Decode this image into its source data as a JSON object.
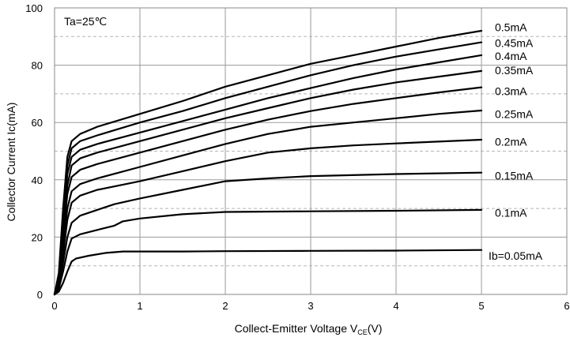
{
  "chart_data": {
    "type": "line",
    "title": "",
    "annotation": "Ta=25℃",
    "ylabel": "Collector  Current   Ic(mA)",
    "xlabel": {
      "main": "Collect-Emitter Voltage   V",
      "subscript": "CE",
      "suffix": "(V)"
    },
    "xlim": [
      0,
      6
    ],
    "ylim": [
      0,
      100
    ],
    "x_ticks": [
      "0",
      "1",
      "2",
      "3",
      "4",
      "5",
      "6"
    ],
    "y_ticks": [
      "0",
      "20",
      "40",
      "60",
      "80",
      "100"
    ],
    "grid": true,
    "series": [
      {
        "name": "Ib=0.05mA",
        "points": [
          [
            0,
            0
          ],
          [
            0.05,
            1
          ],
          [
            0.1,
            4
          ],
          [
            0.15,
            8
          ],
          [
            0.2,
            11.5
          ],
          [
            0.25,
            12.5
          ],
          [
            0.4,
            13.5
          ],
          [
            0.6,
            14.5
          ],
          [
            0.8,
            15
          ],
          [
            1,
            15
          ],
          [
            1.5,
            15
          ],
          [
            2,
            15.1
          ],
          [
            3,
            15.2
          ],
          [
            4,
            15.3
          ],
          [
            5,
            15.5
          ]
        ]
      },
      {
        "name": "0.1mA",
        "points": [
          [
            0,
            0
          ],
          [
            0.05,
            2
          ],
          [
            0.1,
            8
          ],
          [
            0.15,
            15
          ],
          [
            0.2,
            19.5
          ],
          [
            0.3,
            21
          ],
          [
            0.5,
            22.5
          ],
          [
            0.7,
            24
          ],
          [
            0.8,
            25.5
          ],
          [
            1,
            26.5
          ],
          [
            1.5,
            28
          ],
          [
            2,
            28.8
          ],
          [
            3,
            29
          ],
          [
            4,
            29.2
          ],
          [
            5,
            29.5
          ]
        ]
      },
      {
        "name": "0.15mA",
        "points": [
          [
            0,
            0
          ],
          [
            0.05,
            3
          ],
          [
            0.1,
            11
          ],
          [
            0.15,
            20
          ],
          [
            0.2,
            25
          ],
          [
            0.3,
            27.5
          ],
          [
            0.5,
            29.5
          ],
          [
            0.7,
            31.5
          ],
          [
            1,
            33.5
          ],
          [
            1.5,
            36.5
          ],
          [
            2,
            39.5
          ],
          [
            2.5,
            40.5
          ],
          [
            3,
            41.3
          ],
          [
            4,
            42
          ],
          [
            5,
            42.5
          ]
        ]
      },
      {
        "name": "0.2mA",
        "points": [
          [
            0,
            0
          ],
          [
            0.05,
            4
          ],
          [
            0.1,
            14
          ],
          [
            0.15,
            26
          ],
          [
            0.2,
            32
          ],
          [
            0.3,
            34.5
          ],
          [
            0.5,
            36.5
          ],
          [
            1,
            39.5
          ],
          [
            1.5,
            43
          ],
          [
            2,
            46.5
          ],
          [
            2.5,
            49.5
          ],
          [
            3,
            51
          ],
          [
            3.5,
            52
          ],
          [
            4,
            52.7
          ],
          [
            5,
            54
          ]
        ]
      },
      {
        "name": "0.25mA",
        "points": [
          [
            0,
            0
          ],
          [
            0.05,
            5
          ],
          [
            0.1,
            17
          ],
          [
            0.15,
            30
          ],
          [
            0.2,
            36
          ],
          [
            0.3,
            38.5
          ],
          [
            0.5,
            40.5
          ],
          [
            1,
            44.5
          ],
          [
            1.5,
            48.5
          ],
          [
            2,
            52.5
          ],
          [
            2.5,
            56
          ],
          [
            3,
            58.5
          ],
          [
            3.5,
            60
          ],
          [
            4,
            61.5
          ],
          [
            4.5,
            63
          ],
          [
            5,
            64.2
          ]
        ]
      },
      {
        "name": "0.3mA",
        "points": [
          [
            0,
            0
          ],
          [
            0.05,
            5.5
          ],
          [
            0.1,
            20
          ],
          [
            0.15,
            35
          ],
          [
            0.2,
            41
          ],
          [
            0.3,
            43.5
          ],
          [
            0.5,
            45.5
          ],
          [
            1,
            49.5
          ],
          [
            1.5,
            53.5
          ],
          [
            2,
            57.5
          ],
          [
            2.5,
            61
          ],
          [
            3,
            64
          ],
          [
            3.5,
            66.5
          ],
          [
            4,
            68.5
          ],
          [
            4.5,
            70.5
          ],
          [
            5,
            72.3
          ]
        ]
      },
      {
        "name": "0.35mA",
        "points": [
          [
            0,
            0
          ],
          [
            0.05,
            6
          ],
          [
            0.1,
            22
          ],
          [
            0.15,
            38
          ],
          [
            0.2,
            45
          ],
          [
            0.3,
            47.5
          ],
          [
            0.5,
            49.5
          ],
          [
            1,
            53.5
          ],
          [
            1.5,
            57.5
          ],
          [
            2,
            61.5
          ],
          [
            2.5,
            65
          ],
          [
            3,
            68.5
          ],
          [
            3.5,
            71.5
          ],
          [
            4,
            74
          ],
          [
            4.5,
            76
          ],
          [
            5,
            78
          ]
        ]
      },
      {
        "name": "0.4mA",
        "points": [
          [
            0,
            0
          ],
          [
            0.05,
            6.5
          ],
          [
            0.1,
            25
          ],
          [
            0.15,
            42
          ],
          [
            0.2,
            48
          ],
          [
            0.3,
            50.5
          ],
          [
            0.5,
            52.5
          ],
          [
            1,
            56.5
          ],
          [
            1.5,
            60.5
          ],
          [
            2,
            64.5
          ],
          [
            2.5,
            68.5
          ],
          [
            3,
            72
          ],
          [
            3.5,
            75.5
          ],
          [
            4,
            78.5
          ],
          [
            4.5,
            81
          ],
          [
            5,
            83.5
          ]
        ]
      },
      {
        "name": "0.45mA",
        "points": [
          [
            0,
            0
          ],
          [
            0.05,
            7
          ],
          [
            0.1,
            27
          ],
          [
            0.15,
            45
          ],
          [
            0.2,
            51
          ],
          [
            0.3,
            53.5
          ],
          [
            0.5,
            55.5
          ],
          [
            1,
            60
          ],
          [
            1.5,
            64
          ],
          [
            2,
            68.5
          ],
          [
            2.5,
            72.5
          ],
          [
            3,
            76.5
          ],
          [
            3.5,
            80
          ],
          [
            4,
            83
          ],
          [
            4.5,
            85.5
          ],
          [
            5,
            88
          ]
        ]
      },
      {
        "name": "0.5mA",
        "points": [
          [
            0,
            0
          ],
          [
            0.05,
            7.5
          ],
          [
            0.1,
            30
          ],
          [
            0.15,
            48
          ],
          [
            0.2,
            53.5
          ],
          [
            0.3,
            56
          ],
          [
            0.5,
            58.5
          ],
          [
            1,
            63
          ],
          [
            1.5,
            67.5
          ],
          [
            2,
            72.5
          ],
          [
            2.5,
            76.5
          ],
          [
            3,
            80.5
          ],
          [
            3.5,
            83.5
          ],
          [
            4,
            86.5
          ],
          [
            4.5,
            89.5
          ],
          [
            5,
            92
          ]
        ]
      }
    ]
  }
}
